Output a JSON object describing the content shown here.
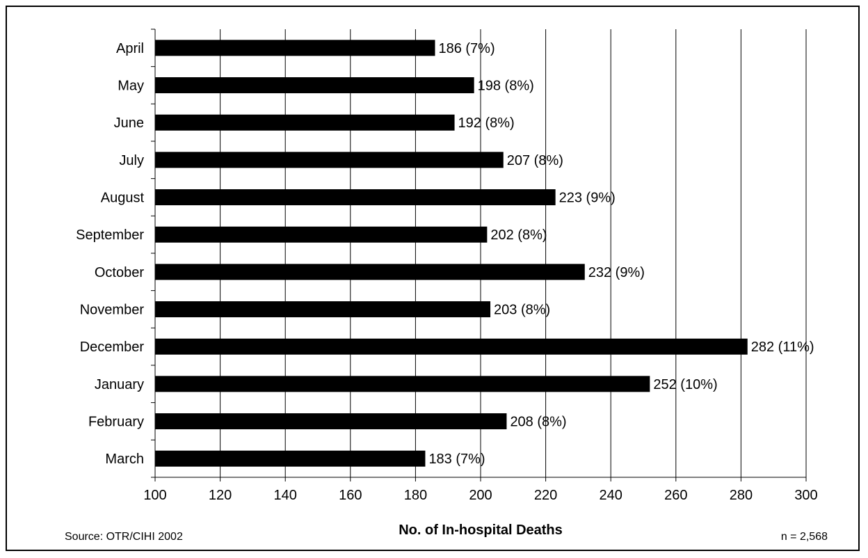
{
  "chart_data": {
    "type": "bar",
    "orientation": "horizontal",
    "categories": [
      "April",
      "May",
      "June",
      "July",
      "August",
      "September",
      "October",
      "November",
      "December",
      "January",
      "February",
      "March"
    ],
    "values": [
      186,
      198,
      192,
      207,
      223,
      202,
      232,
      203,
      282,
      252,
      208,
      183
    ],
    "data_labels": [
      "186 (7%)",
      "198 (8%)",
      "192 (8%)",
      "207 (8%)",
      "223 (9%)",
      "202 (8%)",
      "232 (9%)",
      "203 (8%)",
      "282 (11%)",
      "252 (10%)",
      "208 (8%)",
      "183 (7%)"
    ],
    "title": "",
    "xlabel": "No. of In-hospital Deaths",
    "ylabel": "",
    "xlim": [
      100,
      300
    ],
    "x_ticks": [
      100,
      120,
      140,
      160,
      180,
      200,
      220,
      240,
      260,
      280,
      300
    ],
    "grid": "vertical",
    "legend": "none",
    "bar_color": "#000000",
    "source": "Source: OTR/CIHI 2002",
    "note": "n = 2,568"
  }
}
